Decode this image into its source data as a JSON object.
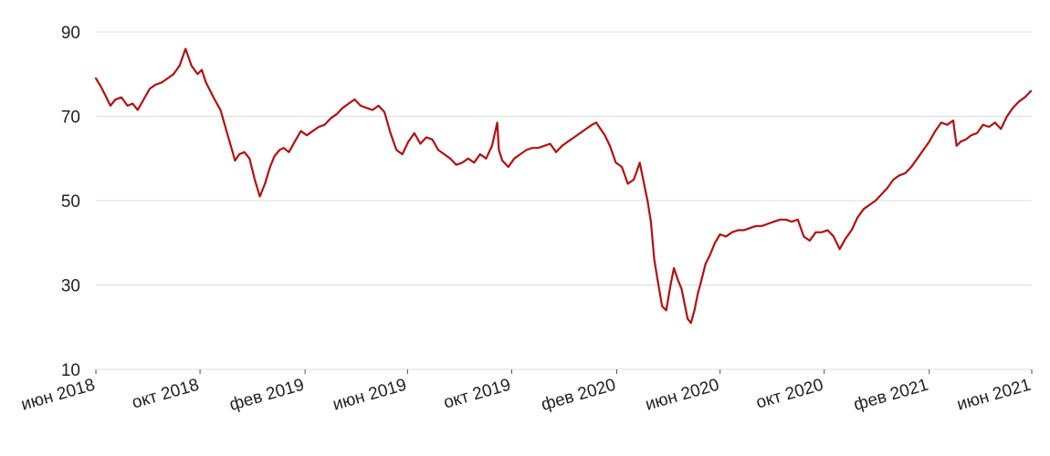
{
  "chart_data": {
    "type": "line",
    "title": "",
    "xlabel": "",
    "ylabel": "",
    "grid": true,
    "legend": "none",
    "line_color": "#b50f0f",
    "grid_color": "#dcdcdc",
    "xlim": [
      "2018-06-01",
      "2021-06-01"
    ],
    "ylim": [
      10,
      90
    ],
    "yticks": [
      {
        "value": 10,
        "label": "10"
      },
      {
        "value": 30,
        "label": "30"
      },
      {
        "value": 50,
        "label": "50"
      },
      {
        "value": 70,
        "label": "70"
      },
      {
        "value": 90,
        "label": "90"
      }
    ],
    "xticks": [
      {
        "date": "2018-06-01",
        "label": "июн 2018"
      },
      {
        "date": "2018-10-01",
        "label": "окт 2018"
      },
      {
        "date": "2019-02-01",
        "label": "фев 2019"
      },
      {
        "date": "2019-06-01",
        "label": "июн 2019"
      },
      {
        "date": "2019-10-01",
        "label": "окт 2019"
      },
      {
        "date": "2020-02-01",
        "label": "фев 2020"
      },
      {
        "date": "2020-06-01",
        "label": "июн 2020"
      },
      {
        "date": "2020-10-01",
        "label": "окт 2020"
      },
      {
        "date": "2021-02-01",
        "label": "фев 2021"
      },
      {
        "date": "2021-06-01",
        "label": "июн 2021"
      }
    ],
    "series": [
      {
        "x": [
          "2018-06-01",
          "2018-06-07",
          "2018-06-12",
          "2018-06-18",
          "2018-06-24",
          "2018-07-01",
          "2018-07-08",
          "2018-07-14",
          "2018-07-20",
          "2018-07-27",
          "2018-08-03",
          "2018-08-10",
          "2018-08-17",
          "2018-08-24",
          "2018-08-31",
          "2018-09-07",
          "2018-09-14",
          "2018-09-21",
          "2018-09-28",
          "2018-10-03",
          "2018-10-08",
          "2018-10-13",
          "2018-10-18",
          "2018-10-25",
          "2018-11-01",
          "2018-11-06",
          "2018-11-11",
          "2018-11-16",
          "2018-11-22",
          "2018-11-28",
          "2018-12-04",
          "2018-12-10",
          "2018-12-16",
          "2018-12-22",
          "2018-12-27",
          "2019-01-02",
          "2019-01-07",
          "2019-01-13",
          "2019-01-20",
          "2019-01-27",
          "2019-02-03",
          "2019-02-10",
          "2019-02-17",
          "2019-02-24",
          "2019-03-03",
          "2019-03-10",
          "2019-03-17",
          "2019-03-24",
          "2019-03-31",
          "2019-04-07",
          "2019-04-14",
          "2019-04-21",
          "2019-04-28",
          "2019-05-05",
          "2019-05-12",
          "2019-05-19",
          "2019-05-26",
          "2019-06-02",
          "2019-06-09",
          "2019-06-16",
          "2019-06-23",
          "2019-06-30",
          "2019-07-07",
          "2019-07-14",
          "2019-07-21",
          "2019-07-28",
          "2019-08-04",
          "2019-08-11",
          "2019-08-18",
          "2019-08-25",
          "2019-09-01",
          "2019-09-08",
          "2019-09-14",
          "2019-09-16",
          "2019-09-20",
          "2019-09-27",
          "2019-10-04",
          "2019-10-11",
          "2019-10-18",
          "2019-10-25",
          "2019-11-01",
          "2019-11-08",
          "2019-11-15",
          "2019-11-22",
          "2019-11-29",
          "2019-12-06",
          "2019-12-13",
          "2019-12-20",
          "2019-12-27",
          "2020-01-03",
          "2020-01-08",
          "2020-01-13",
          "2020-01-18",
          "2020-01-24",
          "2020-01-31",
          "2020-02-07",
          "2020-02-14",
          "2020-02-21",
          "2020-02-28",
          "2020-03-04",
          "2020-03-08",
          "2020-03-12",
          "2020-03-16",
          "2020-03-20",
          "2020-03-25",
          "2020-03-30",
          "2020-04-04",
          "2020-04-08",
          "2020-04-13",
          "2020-04-17",
          "2020-04-21",
          "2020-04-24",
          "2020-04-28",
          "2020-05-02",
          "2020-05-06",
          "2020-05-10",
          "2020-05-15",
          "2020-05-20",
          "2020-05-26",
          "2020-06-01",
          "2020-06-08",
          "2020-06-15",
          "2020-06-22",
          "2020-06-29",
          "2020-07-06",
          "2020-07-13",
          "2020-07-20",
          "2020-07-27",
          "2020-08-03",
          "2020-08-10",
          "2020-08-17",
          "2020-08-24",
          "2020-08-31",
          "2020-09-07",
          "2020-09-14",
          "2020-09-21",
          "2020-09-28",
          "2020-10-05",
          "2020-10-12",
          "2020-10-19",
          "2020-10-26",
          "2020-11-02",
          "2020-11-09",
          "2020-11-16",
          "2020-11-23",
          "2020-11-30",
          "2020-12-07",
          "2020-12-14",
          "2020-12-21",
          "2020-12-28",
          "2021-01-04",
          "2021-01-11",
          "2021-01-18",
          "2021-01-25",
          "2021-02-01",
          "2021-02-08",
          "2021-02-15",
          "2021-02-22",
          "2021-03-01",
          "2021-03-05",
          "2021-03-10",
          "2021-03-16",
          "2021-03-22",
          "2021-03-29",
          "2021-04-05",
          "2021-04-12",
          "2021-04-19",
          "2021-04-26",
          "2021-05-03",
          "2021-05-10",
          "2021-05-17",
          "2021-05-24",
          "2021-05-31"
        ],
        "y": [
          79,
          77,
          75,
          72.5,
          74,
          74.5,
          72.5,
          73,
          71.5,
          74,
          76.5,
          77.5,
          78,
          79,
          80,
          82,
          86,
          82,
          80,
          81,
          78,
          76,
          74,
          71.5,
          66.5,
          63,
          59.5,
          61,
          61.5,
          60,
          55,
          51,
          54,
          58,
          60.5,
          62,
          62.5,
          61.5,
          64,
          66.5,
          65.5,
          66.5,
          67.5,
          68,
          69.5,
          70.5,
          72,
          73,
          74,
          72.5,
          72,
          71.5,
          72.5,
          71,
          66,
          62,
          61,
          64,
          66,
          63.5,
          65,
          64.5,
          62,
          61,
          60,
          58.5,
          59,
          60,
          59,
          61,
          60,
          63,
          68.5,
          62,
          59.5,
          58,
          60,
          61,
          62,
          62.5,
          62.5,
          63,
          63.5,
          61.5,
          63,
          64,
          65,
          66,
          67,
          68,
          68.5,
          67,
          65.5,
          63,
          59,
          58,
          54,
          55,
          59,
          54,
          50,
          45,
          36,
          31,
          25,
          24,
          30,
          34,
          31,
          29,
          25,
          22,
          21,
          24,
          28,
          31,
          35,
          37,
          40,
          42,
          41.5,
          42.5,
          43,
          43,
          43.5,
          44,
          44,
          44.5,
          45,
          45.5,
          45.5,
          45,
          45.5,
          41.5,
          40.5,
          42.5,
          42.5,
          43,
          41.5,
          38.5,
          41,
          43,
          46,
          48,
          49,
          50,
          51.5,
          53,
          55,
          56,
          56.5,
          58,
          60,
          62,
          64,
          66.5,
          68.5,
          68,
          69,
          63,
          64,
          64.5,
          65.5,
          66,
          68,
          67.5,
          68.5,
          67,
          70,
          72,
          73.5,
          74.5,
          76
        ]
      }
    ]
  }
}
